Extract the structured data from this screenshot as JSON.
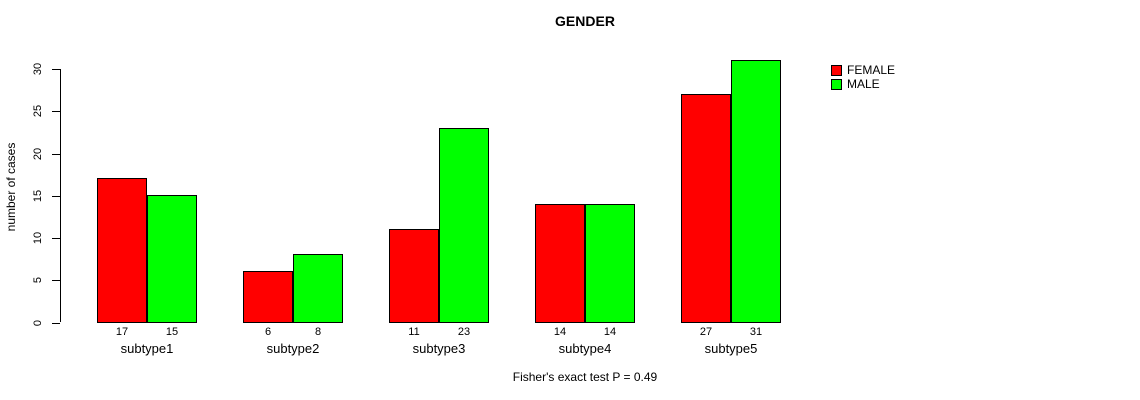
{
  "title": "GENDER",
  "caption": "Fisher's exact test P = 0.49",
  "colors": {
    "female": "#FF0000",
    "male": "#00FF00",
    "axis": "#000000",
    "background": "#FFFFFF"
  },
  "legend": [
    {
      "label": "FEMALE",
      "color": "#FF0000"
    },
    {
      "label": "MALE",
      "color": "#00FF00"
    }
  ],
  "chart_data": {
    "type": "bar",
    "title": "GENDER",
    "categories": [
      "subtype1",
      "subtype2",
      "subtype3",
      "subtype4",
      "subtype5"
    ],
    "series": [
      {
        "name": "FEMALE",
        "color": "#FF0000",
        "values": [
          17,
          6,
          11,
          14,
          27
        ]
      },
      {
        "name": "MALE",
        "color": "#00FF00",
        "values": [
          15,
          8,
          23,
          14,
          31
        ]
      }
    ],
    "xlabel": "",
    "ylabel": "number of cases",
    "yticks": [
      0,
      5,
      10,
      15,
      20,
      25,
      30
    ],
    "ylim": [
      0,
      31
    ],
    "bar_value_labels": [
      [
        17,
        15
      ],
      [
        6,
        8
      ],
      [
        11,
        23
      ],
      [
        14,
        14
      ],
      [
        27,
        31
      ]
    ],
    "grid": false,
    "legend_position": "top-right",
    "annotation": "Fisher's exact test P = 0.49"
  }
}
